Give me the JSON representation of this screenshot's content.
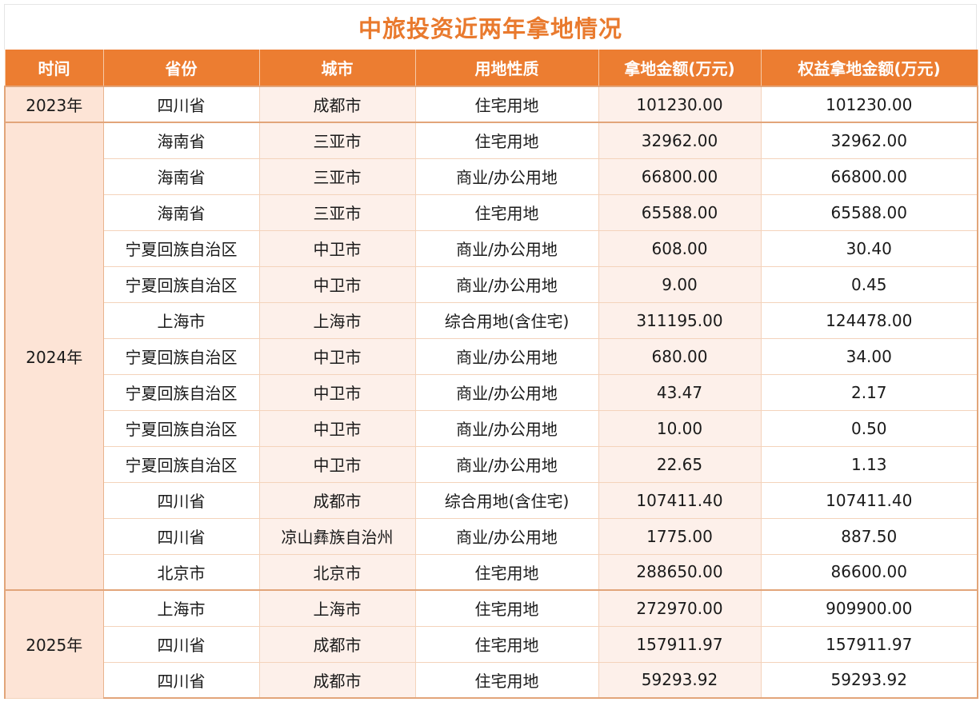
{
  "title": "中旅投资近两年拿地情况",
  "colors": {
    "accent": "#ec7d31",
    "title": "#e97a2e",
    "year_bg": "#fde4d6",
    "tint_bg": "#fdf0ea"
  },
  "headers": [
    "时间",
    "省份",
    "城市",
    "用地性质",
    "拿地金额(万元)",
    "权益拿地金额(万元)"
  ],
  "groups": [
    {
      "year": "2023年",
      "rows": [
        [
          "四川省",
          "成都市",
          "住宅用地",
          "101230.00",
          "101230.00"
        ]
      ]
    },
    {
      "year": "2024年",
      "rows": [
        [
          "海南省",
          "三亚市",
          "住宅用地",
          "32962.00",
          "32962.00"
        ],
        [
          "海南省",
          "三亚市",
          "商业/办公用地",
          "66800.00",
          "66800.00"
        ],
        [
          "海南省",
          "三亚市",
          "住宅用地",
          "65588.00",
          "65588.00"
        ],
        [
          "宁夏回族自治区",
          "中卫市",
          "商业/办公用地",
          "608.00",
          "30.40"
        ],
        [
          "宁夏回族自治区",
          "中卫市",
          "商业/办公用地",
          "9.00",
          "0.45"
        ],
        [
          "上海市",
          "上海市",
          "综合用地(含住宅)",
          "311195.00",
          "124478.00"
        ],
        [
          "宁夏回族自治区",
          "中卫市",
          "商业/办公用地",
          "680.00",
          "34.00"
        ],
        [
          "宁夏回族自治区",
          "中卫市",
          "商业/办公用地",
          "43.47",
          "2.17"
        ],
        [
          "宁夏回族自治区",
          "中卫市",
          "商业/办公用地",
          "10.00",
          "0.50"
        ],
        [
          "宁夏回族自治区",
          "中卫市",
          "商业/办公用地",
          "22.65",
          "1.13"
        ],
        [
          "四川省",
          "成都市",
          "综合用地(含住宅)",
          "107411.40",
          "107411.40"
        ],
        [
          "四川省",
          "凉山彝族自治州",
          "商业/办公用地",
          "1775.00",
          "887.50"
        ],
        [
          "北京市",
          "北京市",
          "住宅用地",
          "288650.00",
          "86600.00"
        ]
      ]
    },
    {
      "year": "2025年",
      "rows": [
        [
          "上海市",
          "上海市",
          "住宅用地",
          "272970.00",
          "909900.00"
        ],
        [
          "四川省",
          "成都市",
          "住宅用地",
          "157911.97",
          "157911.97"
        ],
        [
          "四川省",
          "成都市",
          "住宅用地",
          "59293.92",
          "59293.92"
        ]
      ]
    }
  ]
}
